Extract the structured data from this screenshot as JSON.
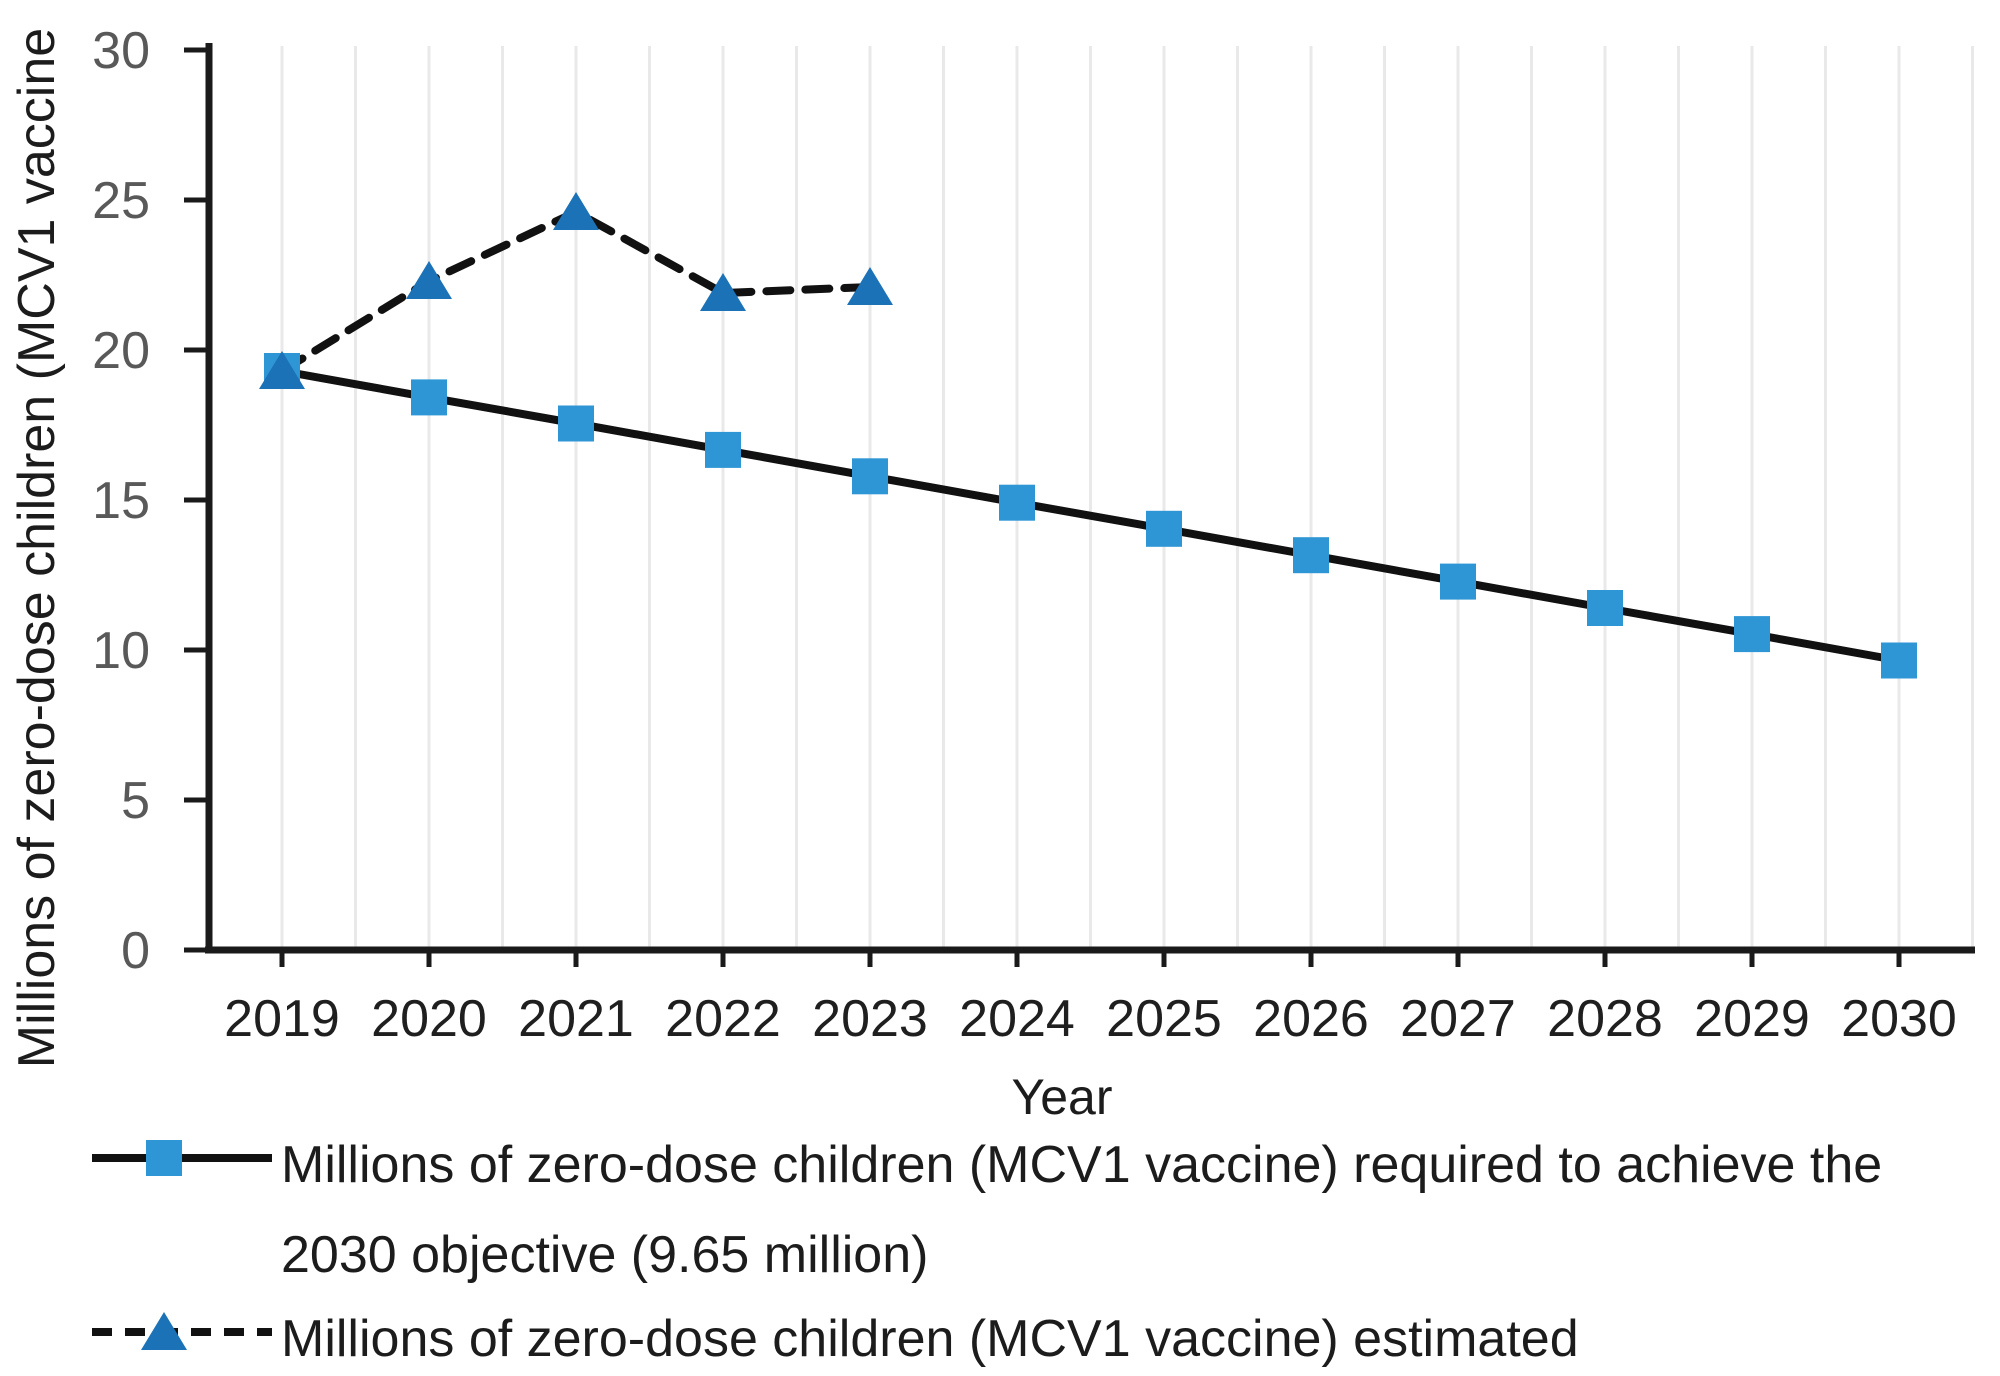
{
  "chart_data": {
    "type": "line",
    "title": "",
    "xlabel": "Year",
    "ylabel": "Millions of zero-dose children (MCV1 vaccine",
    "x_ticks": [
      2019,
      2020,
      2021,
      2022,
      2023,
      2024,
      2025,
      2026,
      2027,
      2028,
      2029,
      2030
    ],
    "y_ticks": [
      0,
      5,
      10,
      15,
      20,
      25,
      30
    ],
    "xlim": [
      2018.5,
      2030.5
    ],
    "ylim": [
      0,
      30
    ],
    "grid": "vertical gridlines every half year, light gray",
    "legend_position": "below chart, left aligned",
    "series": [
      {
        "name": "required",
        "label": "Millions of zero-dose children (MCV1 vaccine) required to achieve the 2030 objective (9.65 million)",
        "label_lines": [
          "Millions of zero-dose children (MCV1 vaccine) required to achieve the",
          "2030 objective (9.65 million)"
        ],
        "marker": "square",
        "marker_color": "#2F96D5",
        "line_style": "solid",
        "line_color": "#111111",
        "x": [
          2019,
          2020,
          2021,
          2022,
          2023,
          2024,
          2025,
          2026,
          2027,
          2028,
          2029,
          2030
        ],
        "values": [
          19.3,
          18.42,
          17.55,
          16.67,
          15.79,
          14.91,
          14.04,
          13.16,
          12.28,
          11.4,
          10.53,
          9.65
        ]
      },
      {
        "name": "estimated",
        "label": "Millions of zero-dose children (MCV1 vaccine) estimated",
        "label_lines": [
          "Millions of zero-dose children (MCV1 vaccine) estimated"
        ],
        "marker": "triangle",
        "marker_color": "#1C72B7",
        "line_style": "dashed",
        "line_color": "#111111",
        "x": [
          2019,
          2020,
          2021,
          2022,
          2023
        ],
        "values": [
          19.3,
          22.3,
          24.6,
          21.9,
          22.1
        ]
      }
    ],
    "colors": {
      "axis": "#1a1a1a",
      "gridline": "#e9e9e9",
      "y_tick_label": "#595959",
      "x_tick_label": "#1f1f1f",
      "axis_title": "#1c1c1c"
    }
  }
}
